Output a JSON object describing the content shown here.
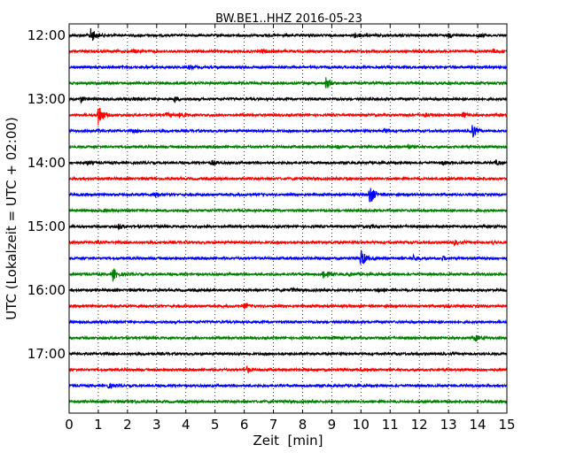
{
  "chart_data": {
    "type": "line",
    "title": "BW.BE1..HHZ 2016-05-23",
    "xlabel": "Zeit  [min]",
    "ylabel": "UTC (Lokalzeit = UTC + 02:00)",
    "xlim": [
      0,
      15
    ],
    "x_ticks": [
      "0",
      "1",
      "2",
      "3",
      "4",
      "5",
      "6",
      "7",
      "8",
      "9",
      "10",
      "11",
      "12",
      "13",
      "14",
      "15"
    ],
    "y_ticks": [
      {
        "label": "12:00",
        "trace": 0
      },
      {
        "label": "13:00",
        "trace": 4
      },
      {
        "label": "14:00",
        "trace": 8
      },
      {
        "label": "15:00",
        "trace": 12
      },
      {
        "label": "16:00",
        "trace": 16
      },
      {
        "label": "17:00",
        "trace": 20
      }
    ],
    "grid": {
      "x": true,
      "y": false,
      "style": "dotted"
    },
    "colors": [
      "#000000",
      "#ff0000",
      "#0000ff",
      "#008000"
    ],
    "traces": [
      {
        "start": "12:00",
        "events": [
          [
            0.75,
            1.0
          ],
          [
            9.8,
            0.35
          ],
          [
            13.0,
            0.2
          ],
          [
            14.0,
            0.2
          ]
        ]
      },
      {
        "start": "12:15",
        "events": [
          [
            2.2,
            0.2
          ],
          [
            6.6,
            0.2
          ],
          [
            14.5,
            0.3
          ]
        ]
      },
      {
        "start": "12:30",
        "events": [
          [
            4.1,
            0.2
          ]
        ]
      },
      {
        "start": "12:45",
        "events": [
          [
            8.8,
            0.7
          ]
        ]
      },
      {
        "start": "13:00",
        "events": [
          [
            0.4,
            0.35
          ],
          [
            3.6,
            0.3
          ],
          [
            2.2,
            0.15
          ]
        ]
      },
      {
        "start": "13:15",
        "events": [
          [
            1.0,
            1.6
          ],
          [
            3.3,
            0.3
          ],
          [
            3.8,
            0.25
          ],
          [
            12.2,
            0.2
          ],
          [
            13.5,
            0.35
          ]
        ]
      },
      {
        "start": "13:30",
        "events": [
          [
            1.0,
            0.2
          ],
          [
            2.2,
            0.15
          ],
          [
            10.8,
            0.3
          ],
          [
            13.8,
            1.0
          ]
        ]
      },
      {
        "start": "13:45",
        "events": [
          [
            9.2,
            0.25
          ],
          [
            11.6,
            0.3
          ]
        ]
      },
      {
        "start": "14:00",
        "events": [
          [
            0.6,
            0.25
          ],
          [
            4.9,
            0.3
          ],
          [
            12.8,
            0.25
          ],
          [
            14.6,
            0.3
          ]
        ]
      },
      {
        "start": "14:15",
        "events": [
          [
            9.5,
            0.2
          ]
        ]
      },
      {
        "start": "14:30",
        "events": [
          [
            2.95,
            0.4
          ],
          [
            10.3,
            1.4
          ]
        ]
      },
      {
        "start": "14:45",
        "events": [
          [
            1.2,
            0.1
          ]
        ]
      },
      {
        "start": "15:00",
        "events": [
          [
            1.7,
            0.3
          ],
          [
            10.3,
            0.2
          ]
        ]
      },
      {
        "start": "15:15",
        "events": [
          [
            0.9,
            0.15
          ],
          [
            13.2,
            0.25
          ],
          [
            14.5,
            0.2
          ]
        ]
      },
      {
        "start": "15:30",
        "events": [
          [
            10.0,
            1.3
          ],
          [
            11.8,
            0.3
          ],
          [
            12.8,
            0.2
          ]
        ]
      },
      {
        "start": "15:45",
        "events": [
          [
            1.5,
            0.8
          ],
          [
            8.7,
            0.7
          ],
          [
            9.6,
            0.2
          ]
        ]
      },
      {
        "start": "16:00",
        "events": [
          [
            7.6,
            0.25
          ],
          [
            10.6,
            0.25
          ]
        ]
      },
      {
        "start": "16:15",
        "events": [
          [
            6.0,
            0.3
          ],
          [
            12.9,
            0.25
          ]
        ]
      },
      {
        "start": "16:30",
        "events": []
      },
      {
        "start": "16:45",
        "events": [
          [
            9.0,
            0.2
          ],
          [
            13.9,
            0.4
          ]
        ]
      },
      {
        "start": "17:00",
        "events": []
      },
      {
        "start": "17:15",
        "events": [
          [
            6.1,
            0.35
          ]
        ]
      },
      {
        "start": "17:30",
        "events": [
          [
            1.35,
            0.25
          ]
        ]
      },
      {
        "start": "17:45",
        "events": [
          [
            2.2,
            0.2
          ]
        ]
      }
    ]
  }
}
